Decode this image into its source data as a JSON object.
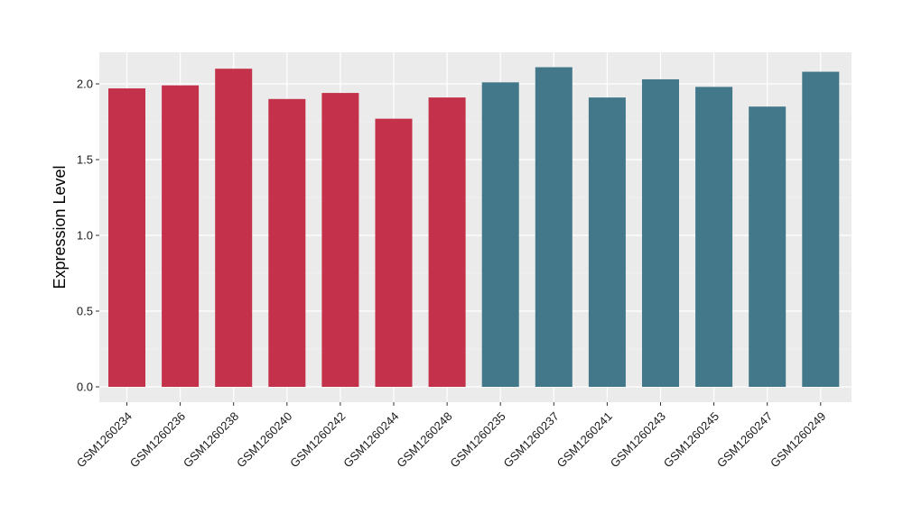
{
  "chart_data": {
    "type": "bar",
    "title": "",
    "xlabel": "",
    "ylabel": "Expression Level",
    "ylim": [
      0,
      2.2
    ],
    "yticks": [
      0.0,
      0.5,
      1.0,
      1.5,
      2.0
    ],
    "ytick_labels": [
      "0.0",
      "0.5",
      "1.0",
      "1.5",
      "2.0"
    ],
    "grid": true,
    "legend": "none",
    "categories": [
      "GSM1260234",
      "GSM1260236",
      "GSM1260238",
      "GSM1260240",
      "GSM1260242",
      "GSM1260244",
      "GSM1260248",
      "GSM1260235",
      "GSM1260237",
      "GSM1260241",
      "GSM1260243",
      "GSM1260245",
      "GSM1260247",
      "GSM1260249"
    ],
    "values": [
      1.97,
      1.99,
      2.1,
      1.9,
      1.94,
      1.77,
      1.91,
      2.01,
      2.11,
      1.91,
      2.03,
      1.98,
      1.85,
      2.08
    ],
    "bar_groups": [
      0,
      0,
      0,
      0,
      0,
      0,
      0,
      1,
      1,
      1,
      1,
      1,
      1,
      1
    ],
    "colors": {
      "group_colors": [
        "#C4314A",
        "#427889"
      ],
      "panel_background": "#EBEBEB",
      "grid_major": "#FFFFFF"
    }
  }
}
